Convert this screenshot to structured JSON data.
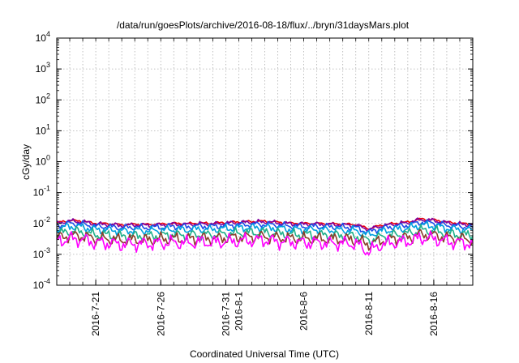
{
  "chart_data": {
    "type": "line",
    "title": "/data/run/goesPlots/archive/2016-08-18/flux/../bryn/31daysMars.plot",
    "xlabel": "Coordinated Universal Time (UTC)",
    "ylabel": "cGy/day",
    "yscale": "log",
    "ylim": [
      0.0001,
      10000
    ],
    "xlim": [
      "2016-07-18",
      "2016-08-19"
    ],
    "grid": true,
    "legend": "none",
    "x_ticks": [
      "2016-7-21",
      "2016-7-26",
      "2016-7-31",
      "2016-8-1",
      "2016-8-6",
      "2016-8-11",
      "2016-8-16"
    ],
    "y_ticks": [
      {
        "base": "10",
        "exp": "-4",
        "value": 0.0001
      },
      {
        "base": "10",
        "exp": "-3",
        "value": 0.001
      },
      {
        "base": "10",
        "exp": "-2",
        "value": 0.01
      },
      {
        "base": "10",
        "exp": "-1",
        "value": 0.1
      },
      {
        "base": "10",
        "exp": "0",
        "value": 1
      },
      {
        "base": "10",
        "exp": "1",
        "value": 10
      },
      {
        "base": "10",
        "exp": "2",
        "value": 100
      },
      {
        "base": "10",
        "exp": "3",
        "value": 1000
      },
      {
        "base": "10",
        "exp": "4",
        "value": 10000
      }
    ],
    "x": [
      "2016-07-18",
      "2016-07-19",
      "2016-07-20",
      "2016-07-21",
      "2016-07-22",
      "2016-07-23",
      "2016-07-24",
      "2016-07-25",
      "2016-07-26",
      "2016-07-27",
      "2016-07-28",
      "2016-07-29",
      "2016-07-30",
      "2016-07-31",
      "2016-08-01",
      "2016-08-02",
      "2016-08-03",
      "2016-08-04",
      "2016-08-05",
      "2016-08-06",
      "2016-08-07",
      "2016-08-08",
      "2016-08-09",
      "2016-08-10",
      "2016-08-11",
      "2016-08-12",
      "2016-08-13",
      "2016-08-14",
      "2016-08-15",
      "2016-08-16",
      "2016-08-17",
      "2016-08-18",
      "2016-08-19"
    ],
    "series": [
      {
        "color": "#e8000b",
        "values": [
          0.0105,
          0.0125,
          0.0118,
          0.01,
          0.0098,
          0.009,
          0.0095,
          0.0092,
          0.0095,
          0.01,
          0.0098,
          0.0102,
          0.01,
          0.0108,
          0.0112,
          0.0115,
          0.0118,
          0.011,
          0.0102,
          0.01,
          0.01,
          0.0098,
          0.0095,
          0.0092,
          0.0068,
          0.0088,
          0.01,
          0.011,
          0.014,
          0.013,
          0.011,
          0.01,
          0.0095
        ]
      },
      {
        "color": "#7f00a0",
        "values": [
          0.01,
          0.012,
          0.0112,
          0.0095,
          0.0092,
          0.0086,
          0.009,
          0.0088,
          0.009,
          0.0095,
          0.0093,
          0.0097,
          0.0095,
          0.0102,
          0.0106,
          0.011,
          0.0112,
          0.0104,
          0.0097,
          0.0095,
          0.0095,
          0.0093,
          0.009,
          0.0087,
          0.0064,
          0.0083,
          0.0095,
          0.0105,
          0.0133,
          0.0124,
          0.0104,
          0.0095,
          0.009
        ]
      },
      {
        "color": "#1f4ee8",
        "values": [
          0.0085,
          0.01,
          0.0095,
          0.008,
          0.0078,
          0.0072,
          0.0075,
          0.0073,
          0.0076,
          0.008,
          0.0078,
          0.0082,
          0.008,
          0.0086,
          0.009,
          0.0092,
          0.0094,
          0.0088,
          0.0082,
          0.008,
          0.008,
          0.0078,
          0.0076,
          0.0073,
          0.0052,
          0.007,
          0.008,
          0.0088,
          0.011,
          0.0104,
          0.0088,
          0.008,
          0.0076
        ]
      },
      {
        "color": "#00a0e0",
        "values": [
          0.0068,
          0.008,
          0.0076,
          0.0064,
          0.0062,
          0.0057,
          0.006,
          0.0058,
          0.006,
          0.0064,
          0.0062,
          0.0065,
          0.0064,
          0.0068,
          0.0072,
          0.0074,
          0.0075,
          0.007,
          0.0065,
          0.0064,
          0.0064,
          0.0062,
          0.006,
          0.0058,
          0.0042,
          0.0056,
          0.0064,
          0.007,
          0.0088,
          0.0083,
          0.007,
          0.0064,
          0.006
        ]
      },
      {
        "color": "#1fb08a",
        "values": [
          0.0045,
          0.0055,
          0.0052,
          0.0043,
          0.0042,
          0.0038,
          0.004,
          0.0039,
          0.0041,
          0.0043,
          0.0042,
          0.0044,
          0.0043,
          0.0046,
          0.0048,
          0.005,
          0.0051,
          0.0047,
          0.0044,
          0.0043,
          0.0043,
          0.0042,
          0.0041,
          0.0039,
          0.0028,
          0.0038,
          0.0043,
          0.0047,
          0.006,
          0.0056,
          0.0047,
          0.0043,
          0.0041
        ]
      },
      {
        "color": "#8a3f2b",
        "values": [
          0.0034,
          0.0041,
          0.0039,
          0.0032,
          0.0031,
          0.0029,
          0.003,
          0.0029,
          0.0031,
          0.0032,
          0.0031,
          0.0033,
          0.0032,
          0.0034,
          0.0036,
          0.0037,
          0.0038,
          0.0035,
          0.0033,
          0.0032,
          0.0032,
          0.0031,
          0.0031,
          0.0029,
          0.0021,
          0.0028,
          0.0032,
          0.0035,
          0.0045,
          0.0042,
          0.0035,
          0.0032,
          0.0031
        ]
      },
      {
        "color": "#ff00ff",
        "values": [
          0.0026,
          0.0032,
          0.003,
          0.0024,
          0.0023,
          0.0021,
          0.0022,
          0.0022,
          0.0023,
          0.0024,
          0.0023,
          0.0025,
          0.0024,
          0.0026,
          0.0027,
          0.0028,
          0.0029,
          0.0026,
          0.0025,
          0.0024,
          0.0024,
          0.0023,
          0.0023,
          0.0022,
          0.0012,
          0.0021,
          0.0024,
          0.0026,
          0.0034,
          0.0032,
          0.0026,
          0.0024,
          0.0023
        ]
      }
    ]
  }
}
